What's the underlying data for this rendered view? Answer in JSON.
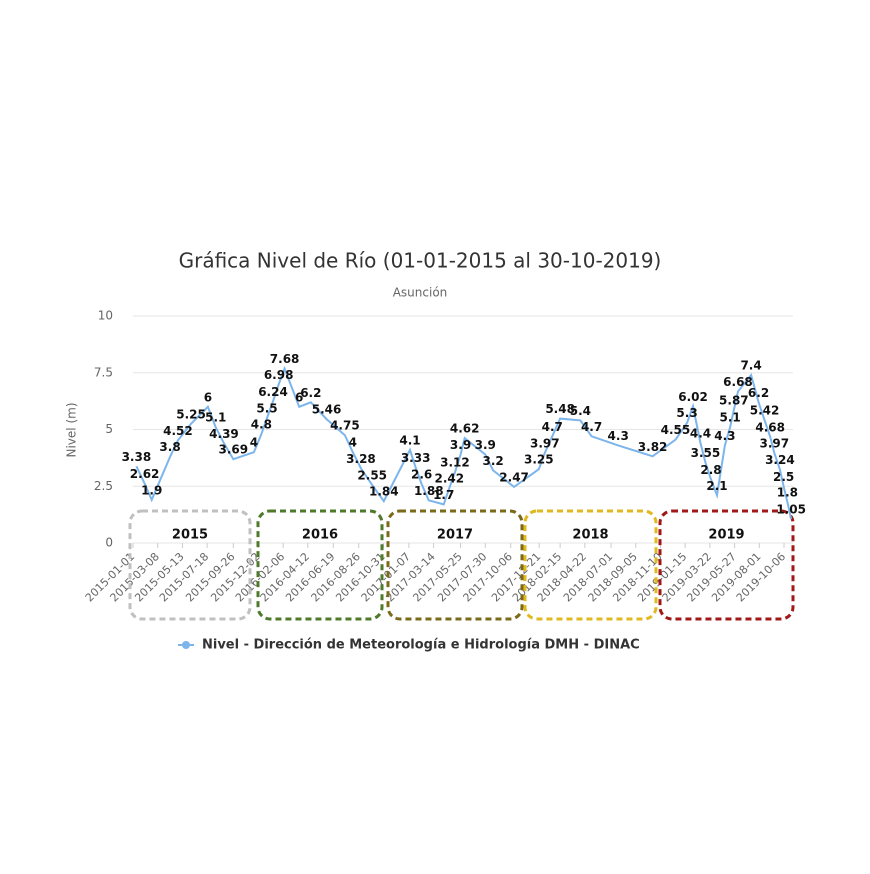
{
  "chart_data": {
    "type": "line",
    "title": "Gráfica Nivel de Río (01-01-2015 al 30-10-2019)",
    "subtitle": "Asunción",
    "y_label": "Nivel (m)",
    "x": [
      "2015-01-10",
      "2015-02-01",
      "2015-02-20",
      "2015-04-10",
      "2015-05-01",
      "2015-06-05",
      "2015-07-20",
      "2015-08-10",
      "2015-09-01",
      "2015-09-26",
      "2015-11-20",
      "2015-12-10",
      "2015-12-25",
      "2016-01-10",
      "2016-01-25",
      "2016-02-10",
      "2016-03-20",
      "2016-04-20",
      "2016-06-01",
      "2016-07-20",
      "2016-08-10",
      "2016-09-01",
      "2016-10-01",
      "2016-11-01",
      "2017-01-10",
      "2017-01-25",
      "2017-02-10",
      "2017-03-01",
      "2017-04-10",
      "2017-04-25",
      "2017-05-10",
      "2017-05-25",
      "2017-06-05",
      "2017-07-30",
      "2017-08-20",
      "2017-10-15",
      "2017-12-20",
      "2018-01-05",
      "2018-01-25",
      "2018-02-15",
      "2018-04-10",
      "2018-05-10",
      "2018-07-20",
      "2018-10-20",
      "2018-12-20",
      "2019-01-20",
      "2019-02-05",
      "2019-02-25",
      "2019-03-10",
      "2019-03-25",
      "2019-04-10",
      "2019-05-01",
      "2019-05-15",
      "2019-05-25",
      "2019-06-05",
      "2019-07-10",
      "2019-07-30",
      "2019-08-15",
      "2019-08-30",
      "2019-09-10",
      "2019-09-25",
      "2019-10-05",
      "2019-10-15",
      "2019-10-25"
    ],
    "series": [
      {
        "name": "Nivel - Dirección de Meteorología e Hidrología DMH - DINAC",
        "color": "#7cb5ec",
        "values": [
          3.38,
          2.62,
          1.9,
          3.8,
          4.52,
          5.25,
          6,
          5.1,
          4.39,
          3.69,
          4,
          4.8,
          5.5,
          6.24,
          6.98,
          7.68,
          6,
          6.2,
          5.46,
          4.75,
          4,
          3.28,
          2.55,
          1.84,
          4.1,
          3.33,
          2.6,
          1.88,
          1.7,
          2.42,
          3.12,
          3.9,
          4.62,
          3.9,
          3.2,
          2.47,
          3.25,
          3.97,
          4.7,
          5.48,
          5.4,
          4.7,
          4.3,
          3.82,
          4.55,
          5.3,
          6.02,
          4.4,
          3.55,
          2.8,
          2.1,
          4.3,
          5.1,
          5.87,
          6.68,
          7.4,
          6.2,
          5.42,
          4.68,
          3.97,
          3.24,
          2.5,
          1.8,
          1.05
        ]
      }
    ],
    "xlim": [
      "2015-01-01",
      "2019-10-30"
    ],
    "xticks": [
      "2015-01-01",
      "2015-03-08",
      "2015-05-13",
      "2015-07-18",
      "2015-09-26",
      "2015-12-02",
      "2016-02-06",
      "2016-04-12",
      "2016-06-19",
      "2016-08-26",
      "2016-10-31",
      "2017-01-07",
      "2017-03-14",
      "2017-05-25",
      "2017-07-30",
      "2017-10-06",
      "2017-12-21",
      "2018-02-15",
      "2018-04-22",
      "2018-07-01",
      "2018-09-05",
      "2018-11-10",
      "2019-01-15",
      "2019-03-22",
      "2019-05-27",
      "2019-08-01",
      "2019-10-06"
    ],
    "ylim": [
      0,
      10
    ],
    "yticks": [
      0,
      2.5,
      5,
      7.5,
      10
    ],
    "grid": true,
    "annotations": [
      {
        "label": "2015",
        "color": "#c0c0c0"
      },
      {
        "label": "2016",
        "color": "#4e7a2a"
      },
      {
        "label": "2017",
        "color": "#7a6a1a"
      },
      {
        "label": "2018",
        "color": "#e0b820"
      },
      {
        "label": "2019",
        "color": "#a01818"
      }
    ]
  }
}
